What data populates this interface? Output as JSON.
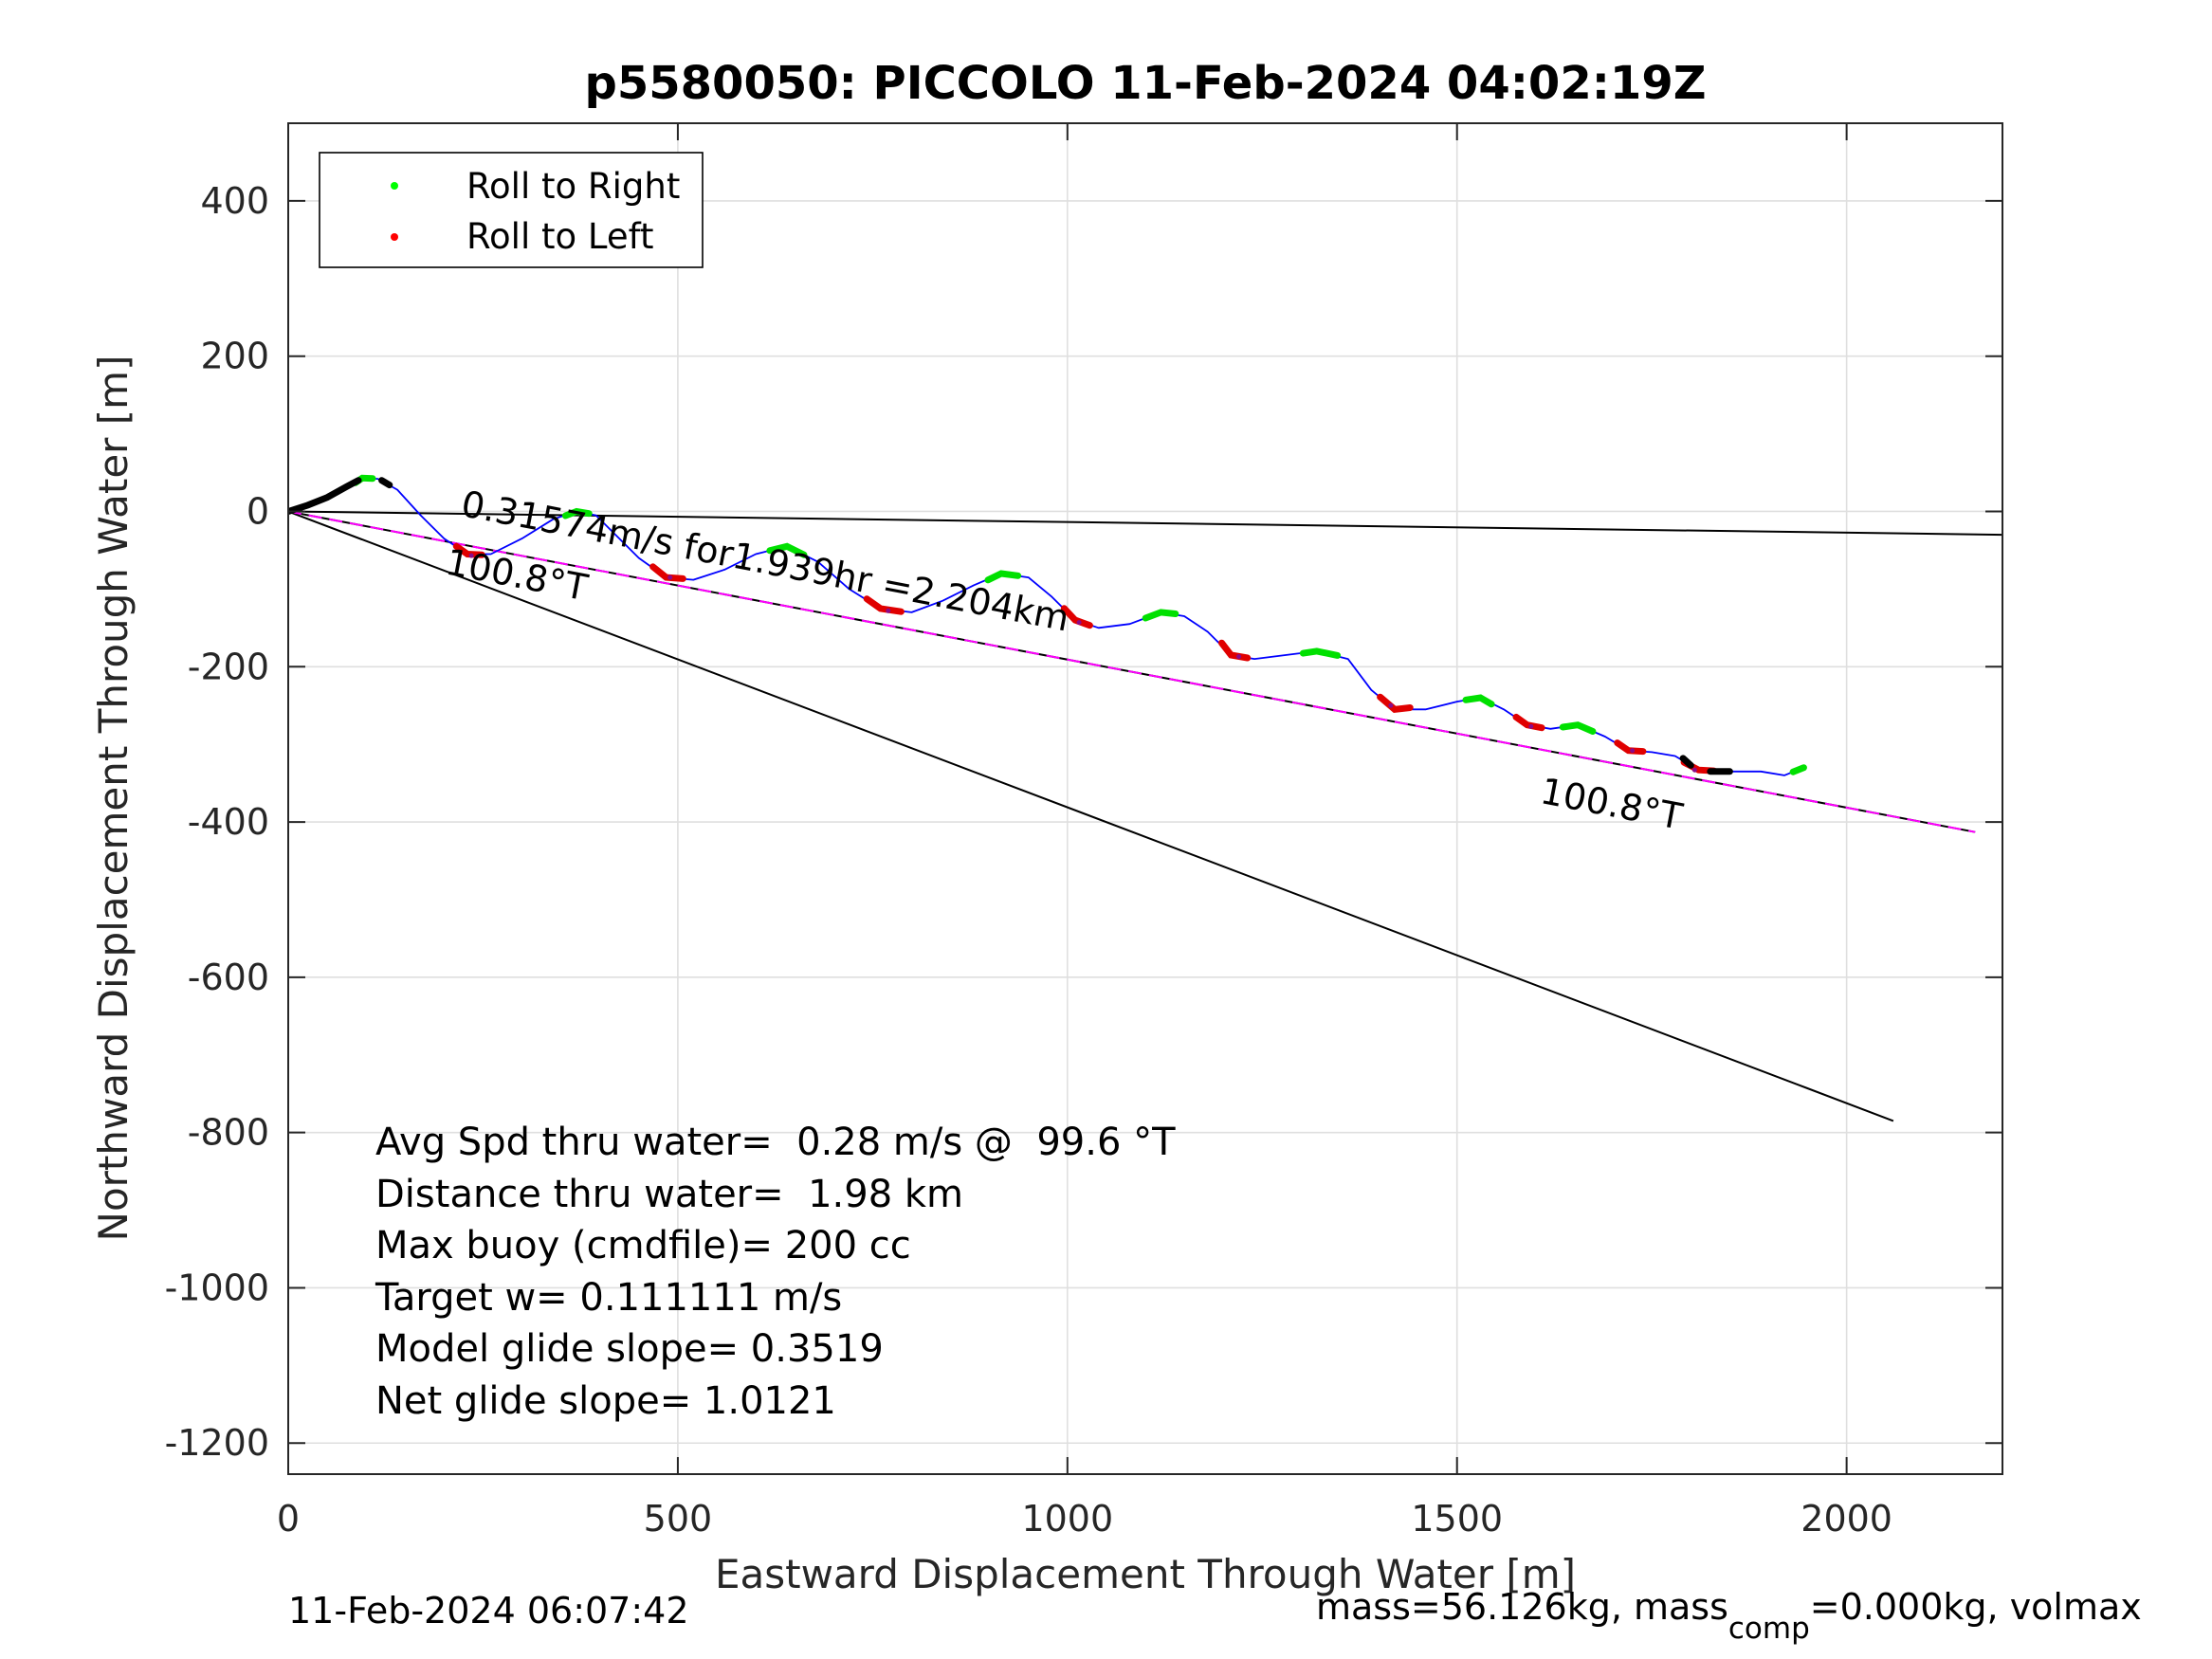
{
  "chart_data": {
    "type": "line",
    "title": "p5580050: PICCOLO 11-Feb-2024 04:02:19Z",
    "xlabel": "Eastward Displacement Through Water [m]",
    "ylabel": "Northward Displacement Through Water [m]",
    "xlim": [
      0,
      2200
    ],
    "ylim": [
      -1240,
      500
    ],
    "xticks": [
      0,
      500,
      1000,
      1500,
      2000
    ],
    "yticks": [
      400,
      200,
      0,
      -200,
      -400,
      -600,
      -800,
      -1000,
      -1200
    ],
    "xtick_labels": [
      "0",
      "500",
      "1000",
      "1500",
      "2000"
    ],
    "ytick_labels": [
      "400",
      "200",
      "0",
      "-200",
      "-400",
      "-600",
      "-800",
      "-1000",
      "-1200"
    ],
    "grid": true,
    "legend_position": "top-left",
    "legend": [
      {
        "label": "Roll to Right",
        "color": "#00ff00"
      },
      {
        "label": "Roll to Left",
        "color": "#ff0000"
      }
    ],
    "track": {
      "color": "#0000ff",
      "points": [
        [
          0,
          0
        ],
        [
          25,
          8
        ],
        [
          50,
          18
        ],
        [
          75,
          32
        ],
        [
          95,
          43
        ],
        [
          115,
          42
        ],
        [
          140,
          28
        ],
        [
          170,
          -5
        ],
        [
          200,
          -35
        ],
        [
          230,
          -55
        ],
        [
          260,
          -55
        ],
        [
          300,
          -35
        ],
        [
          340,
          -10
        ],
        [
          370,
          0
        ],
        [
          395,
          -5
        ],
        [
          420,
          -30
        ],
        [
          450,
          -60
        ],
        [
          485,
          -85
        ],
        [
          520,
          -88
        ],
        [
          560,
          -75
        ],
        [
          600,
          -55
        ],
        [
          640,
          -45
        ],
        [
          680,
          -65
        ],
        [
          720,
          -100
        ],
        [
          760,
          -125
        ],
        [
          800,
          -130
        ],
        [
          840,
          -115
        ],
        [
          880,
          -95
        ],
        [
          915,
          -80
        ],
        [
          950,
          -85
        ],
        [
          980,
          -110
        ],
        [
          1010,
          -140
        ],
        [
          1040,
          -150
        ],
        [
          1080,
          -145
        ],
        [
          1120,
          -130
        ],
        [
          1150,
          -135
        ],
        [
          1180,
          -155
        ],
        [
          1210,
          -185
        ],
        [
          1240,
          -190
        ],
        [
          1280,
          -185
        ],
        [
          1320,
          -180
        ],
        [
          1360,
          -190
        ],
        [
          1390,
          -230
        ],
        [
          1420,
          -255
        ],
        [
          1460,
          -255
        ],
        [
          1500,
          -245
        ],
        [
          1530,
          -240
        ],
        [
          1560,
          -255
        ],
        [
          1590,
          -275
        ],
        [
          1620,
          -280
        ],
        [
          1655,
          -275
        ],
        [
          1690,
          -290
        ],
        [
          1720,
          -308
        ],
        [
          1750,
          -310
        ],
        [
          1780,
          -315
        ],
        [
          1810,
          -333
        ],
        [
          1850,
          -335
        ],
        [
          1890,
          -335
        ],
        [
          1920,
          -340
        ],
        [
          1945,
          -330
        ]
      ]
    },
    "right_roll_arcs": [
      [
        100,
        43
      ],
      [
        375,
        0
      ],
      [
        640,
        -45
      ],
      [
        920,
        -80
      ],
      [
        1125,
        -128
      ],
      [
        1330,
        -180
      ],
      [
        1525,
        -240
      ],
      [
        1655,
        -275
      ],
      [
        1945,
        -330
      ]
    ],
    "left_roll_arcs": [
      [
        235,
        -57
      ],
      [
        490,
        -85
      ],
      [
        770,
        -128
      ],
      [
        1015,
        -143
      ],
      [
        1220,
        -187
      ],
      [
        1415,
        -250
      ],
      [
        1595,
        -277
      ],
      [
        1725,
        -308
      ],
      [
        1805,
        -333
      ]
    ],
    "black_segments": [
      {
        "points": [
          [
            0,
            0
          ],
          [
            25,
            8
          ],
          [
            50,
            18
          ],
          [
            75,
            32
          ],
          [
            90,
            40
          ]
        ]
      },
      {
        "points": [
          [
            120,
            40
          ],
          [
            130,
            34
          ]
        ]
      },
      {
        "points": [
          [
            1790,
            -318
          ],
          [
            1800,
            -327
          ]
        ]
      },
      {
        "points": [
          [
            1825,
            -335
          ],
          [
            1850,
            -335
          ]
        ]
      }
    ],
    "lines": [
      {
        "name": "current-line",
        "color": "#000000",
        "points": [
          [
            0,
            0
          ],
          [
            2200,
            -30
          ]
        ]
      },
      {
        "name": "heading-line",
        "color": "#000000",
        "points": [
          [
            0,
            0
          ],
          [
            2060,
            -785
          ]
        ]
      },
      {
        "name": "bearing-line",
        "color": "#000000",
        "points": [
          [
            0,
            0
          ],
          [
            2165,
            -413
          ]
        ]
      },
      {
        "name": "bearing-line-magenta",
        "color": "#ff00ff",
        "dash": true,
        "points": [
          [
            0,
            0
          ],
          [
            2165,
            -413
          ]
        ]
      }
    ],
    "annotations": [
      {
        "text": "0.31574m/s for1.939hr =2.204km",
        "x": 220,
        "y": -5,
        "rotate_deg": 10.8
      },
      {
        "text": "100.8°T",
        "x": 200,
        "y": -80,
        "rotate_deg": 10.8
      },
      {
        "text": "100.8°T",
        "x": 1605,
        "y": -375,
        "rotate_deg": 10.8
      }
    ]
  },
  "stats": [
    "Avg Spd thru water=  0.28 m/s @  99.6 °T",
    "Distance thru water=  1.98 km",
    "Max buoy (cmdfile)= 200 cc",
    "Target w= 0.111111 m/s",
    "Model glide slope= 0.3519",
    "Net glide slope= 1.0121"
  ],
  "footer": {
    "timestamp": "11-Feb-2024 06:07:42",
    "mass_prefix": "mass=56.126kg, mass",
    "mass_sub": "comp",
    "mass_suffix": "=0.000kg, volmax"
  }
}
